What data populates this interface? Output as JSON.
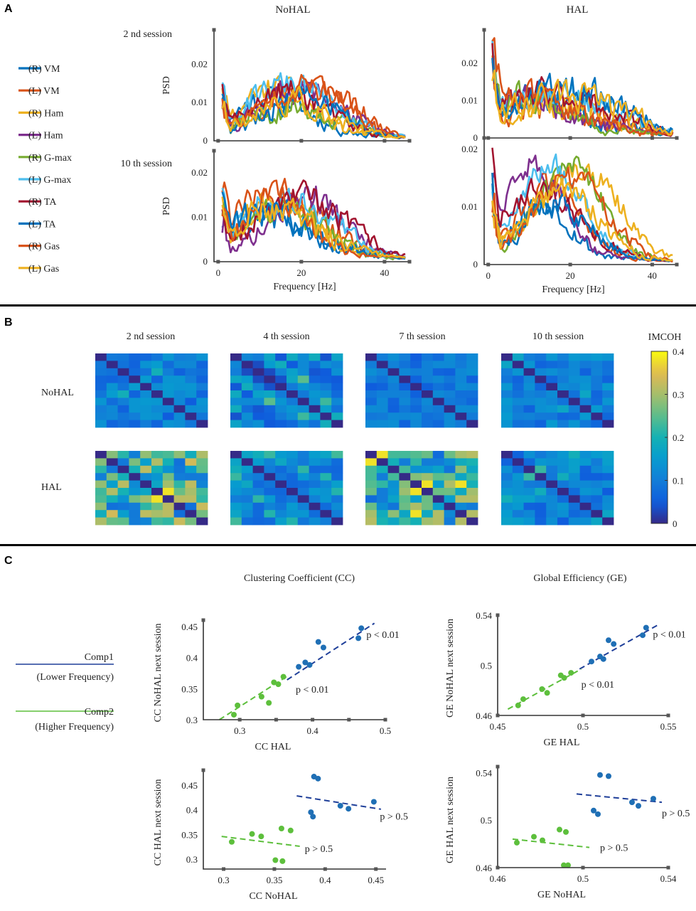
{
  "panels": {
    "a": {
      "letter": "A",
      "columns": [
        "NoHAL",
        "HAL"
      ],
      "rows": [
        "2 nd session",
        "10 th session"
      ],
      "ylabel": "PSD",
      "xlabel": "Frequency [Hz]",
      "legend": [
        {
          "label": "(R) VM",
          "color": "#0072BD"
        },
        {
          "label": "(L) VM",
          "color": "#D95319"
        },
        {
          "label": "(R) Ham",
          "color": "#EDB120"
        },
        {
          "label": "(L) Ham",
          "color": "#7E2F8E"
        },
        {
          "label": "(R) G-max",
          "color": "#77AC30"
        },
        {
          "label": "(L) G-max",
          "color": "#4DBEEE"
        },
        {
          "label": "(R) TA",
          "color": "#A2142F"
        },
        {
          "label": "(L) TA",
          "color": "#0072BD"
        },
        {
          "label": "(R) Gas",
          "color": "#D95319"
        },
        {
          "label": "(L) Gas",
          "color": "#EDB120"
        }
      ]
    },
    "b": {
      "letter": "B",
      "sessions": [
        "2 nd session",
        "4 th session",
        "7 th session",
        "10 th session"
      ],
      "rows": [
        "NoHAL",
        "HAL"
      ],
      "colorbar_title": "IMCOH"
    },
    "c": {
      "letter": "C",
      "titles": [
        "Clustering Coefficient (CC)",
        "Global Efficiency (GE)"
      ],
      "legend": [
        {
          "label": "Comp1",
          "sub": "(Lower Frequency)",
          "color": "#1F3F99"
        },
        {
          "label": "Comp2",
          "sub": "(Higher Frequency)",
          "color": "#5DBF3C"
        }
      ]
    }
  },
  "chart_data": [
    {
      "type": "line",
      "id": "psd-nohal-2nd",
      "title": "NoHAL",
      "ylabel": "PSD",
      "xlabel": "",
      "xlim": [
        -1,
        46
      ],
      "ylim": [
        0,
        0.029
      ],
      "xticks": [
        0,
        20,
        40
      ],
      "xtick_labels": [
        "",
        "",
        ""
      ],
      "yticks": [
        0,
        0.01,
        0.02
      ],
      "ytick_labels": [
        "0",
        "0.01",
        "0.02"
      ],
      "series_shape": {
        "seed": 11,
        "peak": 16,
        "width": 13,
        "base": 0.0015,
        "amp": 0.011,
        "noise": 0.006,
        "lowspike": 0.01
      }
    },
    {
      "type": "line",
      "id": "psd-hal-2nd",
      "title": "HAL",
      "ylabel": "",
      "xlabel": "",
      "xlim": [
        -1,
        46
      ],
      "ylim": [
        0,
        0.029
      ],
      "xticks": [
        0,
        20,
        40
      ],
      "xtick_labels": [
        "",
        "",
        ""
      ],
      "yticks": [
        0,
        0.01,
        0.02
      ],
      "ytick_labels": [
        "0",
        "0.01",
        "0.02"
      ],
      "series_shape": {
        "seed": 23,
        "peak": 14,
        "width": 16,
        "base": 0.0015,
        "amp": 0.009,
        "noise": 0.007,
        "lowspike": 0.016
      }
    },
    {
      "type": "line",
      "id": "psd-nohal-10th",
      "title": "",
      "ylabel": "PSD",
      "xlabel": "Frequency [Hz]",
      "xlim": [
        -1,
        46
      ],
      "ylim": [
        0,
        0.025
      ],
      "xticks": [
        0,
        20,
        40
      ],
      "xtick_labels": [
        "0",
        "20",
        "40"
      ],
      "yticks": [
        0,
        0.01,
        0.02
      ],
      "ytick_labels": [
        "0",
        "0.01",
        "0.02"
      ],
      "series_shape": {
        "seed": 37,
        "peak": 16,
        "width": 12,
        "base": 0.0015,
        "amp": 0.011,
        "noise": 0.006,
        "lowspike": 0.01
      }
    },
    {
      "type": "line",
      "id": "psd-hal-10th",
      "title": "",
      "ylabel": "",
      "xlabel": "Frequency [Hz]",
      "xlim": [
        -1,
        46
      ],
      "ylim": [
        0,
        0.022
      ],
      "xticks": [
        0,
        20,
        40
      ],
      "xtick_labels": [
        "0",
        "20",
        "40"
      ],
      "yticks": [
        0,
        0.01,
        0.02
      ],
      "ytick_labels": [
        "0",
        "0.01",
        "0.02"
      ],
      "series_shape": {
        "seed": 53,
        "peak": 16,
        "width": 11,
        "base": 0.001,
        "amp": 0.013,
        "noise": 0.004,
        "lowspike": 0.012
      }
    },
    {
      "type": "heatmap",
      "id": "imcoh-matrices",
      "colorbar": {
        "min": 0,
        "max": 0.4,
        "ticks": [
          0,
          0.1,
          0.2,
          0.3,
          0.4
        ],
        "tick_labels": [
          "0",
          "0.1",
          "0.2",
          "0.3",
          "0.4"
        ]
      },
      "size": 10,
      "cells": [
        {
          "row": "NoHAL",
          "session": "2 nd session",
          "seed": 101,
          "mean": 0.1,
          "spread": 0.05
        },
        {
          "row": "NoHAL",
          "session": "4 th session",
          "seed": 102,
          "mean": 0.11,
          "spread": 0.08
        },
        {
          "row": "NoHAL",
          "session": "7 th session",
          "seed": 103,
          "mean": 0.09,
          "spread": 0.04
        },
        {
          "row": "NoHAL",
          "session": "10 th session",
          "seed": 104,
          "mean": 0.1,
          "spread": 0.05
        },
        {
          "row": "HAL",
          "session": "2 nd session",
          "seed": 105,
          "mean": 0.2,
          "spread": 0.13
        },
        {
          "row": "HAL",
          "session": "4 th session",
          "seed": 106,
          "mean": 0.12,
          "spread": 0.06
        },
        {
          "row": "HAL",
          "session": "7 th session",
          "seed": 107,
          "mean": 0.2,
          "spread": 0.13
        },
        {
          "row": "HAL",
          "session": "10 th session",
          "seed": 108,
          "mean": 0.11,
          "spread": 0.06
        }
      ]
    },
    {
      "type": "scatter",
      "id": "cc-hal-vs-nohal-next",
      "xlabel": "CC HAL",
      "ylabel": "CC NoHAL next session",
      "xlim": [
        0.25,
        0.5
      ],
      "ylim": [
        0.3,
        0.46
      ],
      "xticks": [
        0.3,
        0.35,
        0.4,
        0.45,
        0.5
      ],
      "xtick_labels": [
        "0.3",
        "",
        "0.4",
        "",
        "0.5"
      ],
      "yticks": [
        0.3,
        0.35,
        0.4,
        0.45
      ],
      "ytick_labels": [
        "0.3",
        "0.35",
        "0.4",
        "0.45"
      ],
      "series": [
        {
          "name": "Comp1",
          "color": "#1F6FB5",
          "x": [
            0.381,
            0.39,
            0.396,
            0.408,
            0.415,
            0.463,
            0.467
          ],
          "y": [
            0.385,
            0.392,
            0.388,
            0.425,
            0.416,
            0.431,
            0.447
          ],
          "fit": [
            [
              0.365,
              0.364
            ],
            [
              0.485,
              0.455
            ]
          ],
          "annotation": "p < 0.01",
          "ann_at": [
            0.474,
            0.437
          ]
        },
        {
          "name": "Comp2",
          "color": "#5DBF3C",
          "x": [
            0.292,
            0.297,
            0.33,
            0.34,
            0.347,
            0.353,
            0.36
          ],
          "y": [
            0.308,
            0.323,
            0.337,
            0.327,
            0.36,
            0.357,
            0.369
          ],
          "fit": [
            [
              0.272,
              0.3
            ],
            [
              0.368,
              0.372
            ]
          ],
          "annotation": "p < 0.01",
          "ann_at": [
            0.377,
            0.349
          ]
        }
      ]
    },
    {
      "type": "scatter",
      "id": "ge-hal-vs-nohal-next",
      "xlabel": "GE HAL",
      "ylabel": "GE NoHAL next session",
      "xlim": [
        0.45,
        0.55
      ],
      "ylim": [
        0.46,
        0.54
      ],
      "xticks": [
        0.45,
        0.5,
        0.55
      ],
      "xtick_labels": [
        "0.45",
        "0.5",
        "0.55"
      ],
      "yticks": [
        0.46,
        0.5,
        0.54
      ],
      "ytick_labels": [
        "0.46",
        "0.5",
        "0.54"
      ],
      "series": [
        {
          "name": "Comp1",
          "color": "#1F6FB5",
          "x": [
            0.505,
            0.51,
            0.512,
            0.515,
            0.518,
            0.535,
            0.537
          ],
          "y": [
            0.503,
            0.507,
            0.505,
            0.52,
            0.517,
            0.524,
            0.53
          ],
          "fit": [
            [
              0.498,
              0.497
            ],
            [
              0.545,
              0.533
            ]
          ],
          "annotation": "p < 0.01",
          "ann_at": [
            0.541,
            0.525
          ]
        },
        {
          "name": "Comp2",
          "color": "#5DBF3C",
          "x": [
            0.462,
            0.465,
            0.476,
            0.479,
            0.487,
            0.489,
            0.493
          ],
          "y": [
            0.468,
            0.473,
            0.481,
            0.478,
            0.492,
            0.49,
            0.494
          ],
          "fit": [
            [
              0.456,
              0.465
            ],
            [
              0.499,
              0.497
            ]
          ],
          "annotation": "p < 0.01",
          "ann_at": [
            0.499,
            0.485
          ]
        }
      ]
    },
    {
      "type": "scatter",
      "id": "cc-nohal-vs-hal-next",
      "xlabel": "CC NoHAL",
      "ylabel": "CC HAL next session",
      "xlim": [
        0.28,
        0.46
      ],
      "ylim": [
        0.28,
        0.48
      ],
      "xticks": [
        0.3,
        0.35,
        0.4,
        0.45
      ],
      "xtick_labels": [
        "0.3",
        "0.35",
        "0.4",
        "0.45"
      ],
      "yticks": [
        0.3,
        0.35,
        0.4,
        0.45
      ],
      "ytick_labels": [
        "0.3",
        "0.35",
        "0.4",
        "0.45"
      ],
      "series": [
        {
          "name": "Comp1",
          "color": "#1F6FB5",
          "x": [
            0.386,
            0.388,
            0.389,
            0.393,
            0.415,
            0.423,
            0.448
          ],
          "y": [
            0.395,
            0.386,
            0.467,
            0.463,
            0.408,
            0.402,
            0.416
          ],
          "fit": [
            [
              0.372,
              0.428
            ],
            [
              0.455,
              0.401
            ]
          ],
          "annotation": "p > 0.5",
          "ann_at": [
            0.454,
            0.387
          ]
        },
        {
          "name": "Comp2",
          "color": "#5DBF3C",
          "x": [
            0.308,
            0.328,
            0.337,
            0.351,
            0.357,
            0.358,
            0.366
          ],
          "y": [
            0.335,
            0.351,
            0.346,
            0.298,
            0.362,
            0.296,
            0.358
          ],
          "fit": [
            [
              0.298,
              0.346
            ],
            [
              0.375,
              0.326
            ]
          ],
          "annotation": "p > 0.5",
          "ann_at": [
            0.38,
            0.322
          ]
        }
      ]
    },
    {
      "type": "scatter",
      "id": "ge-nohal-vs-hal-next",
      "xlabel": "GE NoHAL",
      "ylabel": "GE HAL next session",
      "xlim": [
        0.46,
        0.54
      ],
      "ylim": [
        0.46,
        0.545
      ],
      "xticks": [
        0.46,
        0.5,
        0.54
      ],
      "xtick_labels": [
        "0.46",
        "0.5",
        "0.54"
      ],
      "yticks": [
        0.46,
        0.5,
        0.54
      ],
      "ytick_labels": [
        "0.46",
        "0.5",
        "0.54"
      ],
      "series": [
        {
          "name": "Comp1",
          "color": "#1F6FB5",
          "x": [
            0.505,
            0.507,
            0.508,
            0.512,
            0.523,
            0.526,
            0.533
          ],
          "y": [
            0.508,
            0.505,
            0.538,
            0.537,
            0.515,
            0.512,
            0.518
          ],
          "fit": [
            [
              0.497,
              0.522
            ],
            [
              0.537,
              0.515
            ]
          ],
          "annotation": "p > 0.5",
          "ann_at": [
            0.537,
            0.506
          ]
        },
        {
          "name": "Comp2",
          "color": "#5DBF3C",
          "x": [
            0.469,
            0.477,
            0.481,
            0.489,
            0.491,
            0.492,
            0.493
          ],
          "y": [
            0.481,
            0.486,
            0.483,
            0.492,
            0.462,
            0.49,
            0.462
          ],
          "fit": [
            [
              0.467,
              0.484
            ],
            [
              0.503,
              0.477
            ]
          ],
          "annotation": "p > 0.5",
          "ann_at": [
            0.508,
            0.477
          ]
        }
      ]
    }
  ]
}
